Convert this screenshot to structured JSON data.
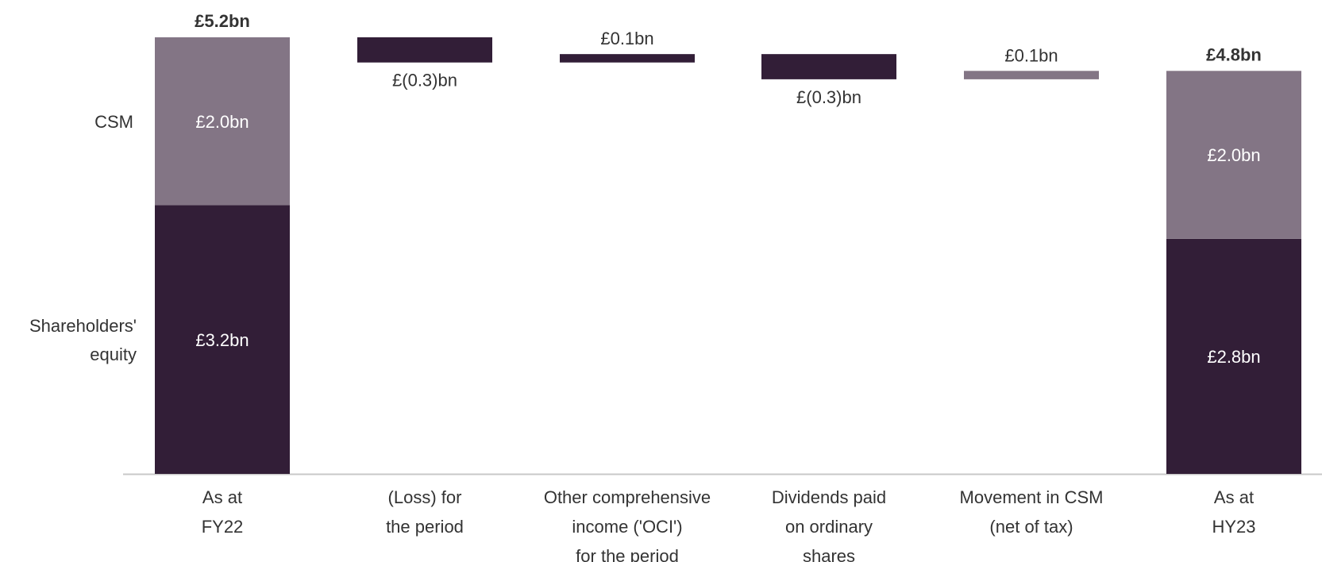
{
  "chart_data": {
    "type": "bar",
    "subtype": "waterfall",
    "categories": [
      [
        "As at",
        "FY22"
      ],
      [
        "(Loss) for",
        "the period"
      ],
      [
        "Other comprehensive",
        "income ('OCI')",
        "for the period"
      ],
      [
        "Dividends paid",
        "on ordinary",
        "shares"
      ],
      [
        "Movement in CSM",
        "(net of tax)"
      ],
      [
        "As at",
        "HY23"
      ]
    ],
    "row_labels": {
      "csm": [
        "CSM"
      ],
      "equity": [
        "Shareholders'",
        "equity"
      ]
    },
    "bars": [
      {
        "kind": "total",
        "segments": [
          {
            "component": "equity",
            "value": 3.2,
            "label": "£3.2bn"
          },
          {
            "component": "csm",
            "value": 2.0,
            "label": "£2.0bn"
          }
        ],
        "total": 5.2,
        "total_label": "£5.2bn"
      },
      {
        "kind": "delta",
        "component": "equity",
        "value": -0.3,
        "label": "£(0.3)bn"
      },
      {
        "kind": "delta",
        "component": "equity",
        "value": 0.1,
        "label": "£0.1bn"
      },
      {
        "kind": "delta",
        "component": "equity",
        "value": -0.3,
        "label": "£(0.3)bn"
      },
      {
        "kind": "delta",
        "component": "csm",
        "value": 0.1,
        "label": "£0.1bn"
      },
      {
        "kind": "total",
        "segments": [
          {
            "component": "equity",
            "value": 2.8,
            "label": "£2.8bn"
          },
          {
            "component": "csm",
            "value": 2.0,
            "label": "£2.0bn"
          }
        ],
        "total": 4.8,
        "total_label": "£4.8bn"
      }
    ],
    "colors": {
      "equity": "#321e37",
      "csm": "#837585",
      "axis": "#c8c8c8",
      "text": "#333333",
      "inner_text": "#ffffff"
    },
    "ylim": [
      0,
      5.2
    ],
    "grid": false,
    "legend": "left"
  }
}
